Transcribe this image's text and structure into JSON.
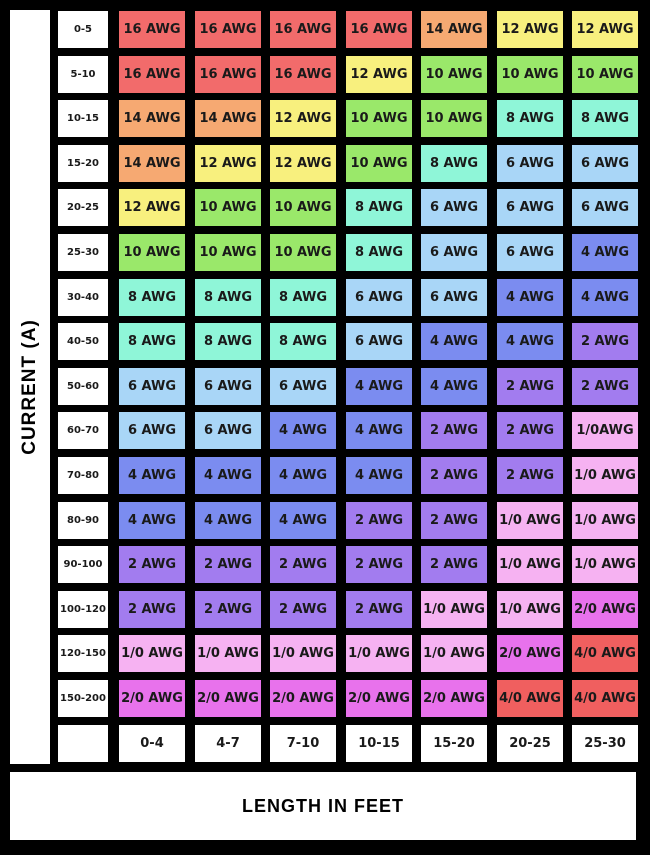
{
  "chart_data": {
    "type": "table",
    "ylabel": "CURRENT (A)",
    "xlabel": "LENGTH IN FEET",
    "rows": [
      "0-5",
      "5-10",
      "10-15",
      "15-20",
      "20-25",
      "25-30",
      "30-40",
      "40-50",
      "50-60",
      "60-70",
      "70-80",
      "80-90",
      "90-100",
      "100-120",
      "120-150",
      "150-200"
    ],
    "columns": [
      "0-4",
      "4-7",
      "7-10",
      "10-15",
      "15-20",
      "20-25",
      "25-30"
    ],
    "values": [
      [
        "16 AWG",
        "16 AWG",
        "16 AWG",
        "16 AWG",
        "14 AWG",
        "12 AWG",
        "12 AWG"
      ],
      [
        "16 AWG",
        "16 AWG",
        "16 AWG",
        "12 AWG",
        "10 AWG",
        "10 AWG",
        "10 AWG"
      ],
      [
        "14 AWG",
        "14 AWG",
        "12 AWG",
        "10 AWG",
        "10 AWG",
        "8 AWG",
        "8 AWG"
      ],
      [
        "14 AWG",
        "12 AWG",
        "12 AWG",
        "10 AWG",
        "8 AWG",
        "6 AWG",
        "6 AWG"
      ],
      [
        "12 AWG",
        "10 AWG",
        "10 AWG",
        "8 AWG",
        "6 AWG",
        "6 AWG",
        "6 AWG"
      ],
      [
        "10 AWG",
        "10 AWG",
        "10 AWG",
        "8 AWG",
        "6 AWG",
        "6 AWG",
        "4 AWG"
      ],
      [
        "8 AWG",
        "8 AWG",
        "8 AWG",
        "6 AWG",
        "6 AWG",
        "4 AWG",
        "4 AWG"
      ],
      [
        "8 AWG",
        "8 AWG",
        "8 AWG",
        "6 AWG",
        "4 AWG",
        "4 AWG",
        "2 AWG"
      ],
      [
        "6 AWG",
        "6 AWG",
        "6 AWG",
        "4 AWG",
        "4 AWG",
        "2 AWG",
        "2 AWG"
      ],
      [
        "6 AWG",
        "6 AWG",
        "4 AWG",
        "4 AWG",
        "2 AWG",
        "2 AWG",
        "1/0AWG"
      ],
      [
        "4 AWG",
        "4 AWG",
        "4 AWG",
        "4 AWG",
        "2 AWG",
        "2 AWG",
        "1/0 AWG"
      ],
      [
        "4 AWG",
        "4 AWG",
        "4 AWG",
        "2 AWG",
        "2 AWG",
        "1/0 AWG",
        "1/0 AWG"
      ],
      [
        "2 AWG",
        "2 AWG",
        "2 AWG",
        "2 AWG",
        "2 AWG",
        "1/0 AWG",
        "1/0 AWG"
      ],
      [
        "2 AWG",
        "2 AWG",
        "2 AWG",
        "2 AWG",
        "1/0 AWG",
        "1/0 AWG",
        "2/0 AWG"
      ],
      [
        "1/0 AWG",
        "1/0 AWG",
        "1/0 AWG",
        "1/0 AWG",
        "1/0 AWG",
        "2/0 AWG",
        "4/0 AWG"
      ],
      [
        "2/0 AWG",
        "2/0 AWG",
        "2/0 AWG",
        "2/0 AWG",
        "2/0 AWG",
        "4/0 AWG",
        "4/0 AWG"
      ]
    ],
    "grid": true
  },
  "colors": {
    "16 AWG": "#f26b6b",
    "14 AWG": "#f6a972",
    "12 AWG": "#f8f07e",
    "10 AWG": "#9ae86a",
    "8 AWG": "#8ff6d8",
    "6 AWG": "#a9d6f7",
    "4 AWG": "#7b8cf0",
    "2 AWG": "#a27cef",
    "1/0 AWG": "#f6b2f2",
    "1/0AWG": "#f6b2f2",
    "2/0 AWG": "#e872ec",
    "4/0 AWG": "#f05f5f",
    "background": "#000000",
    "header_bg": "#ffffff"
  }
}
